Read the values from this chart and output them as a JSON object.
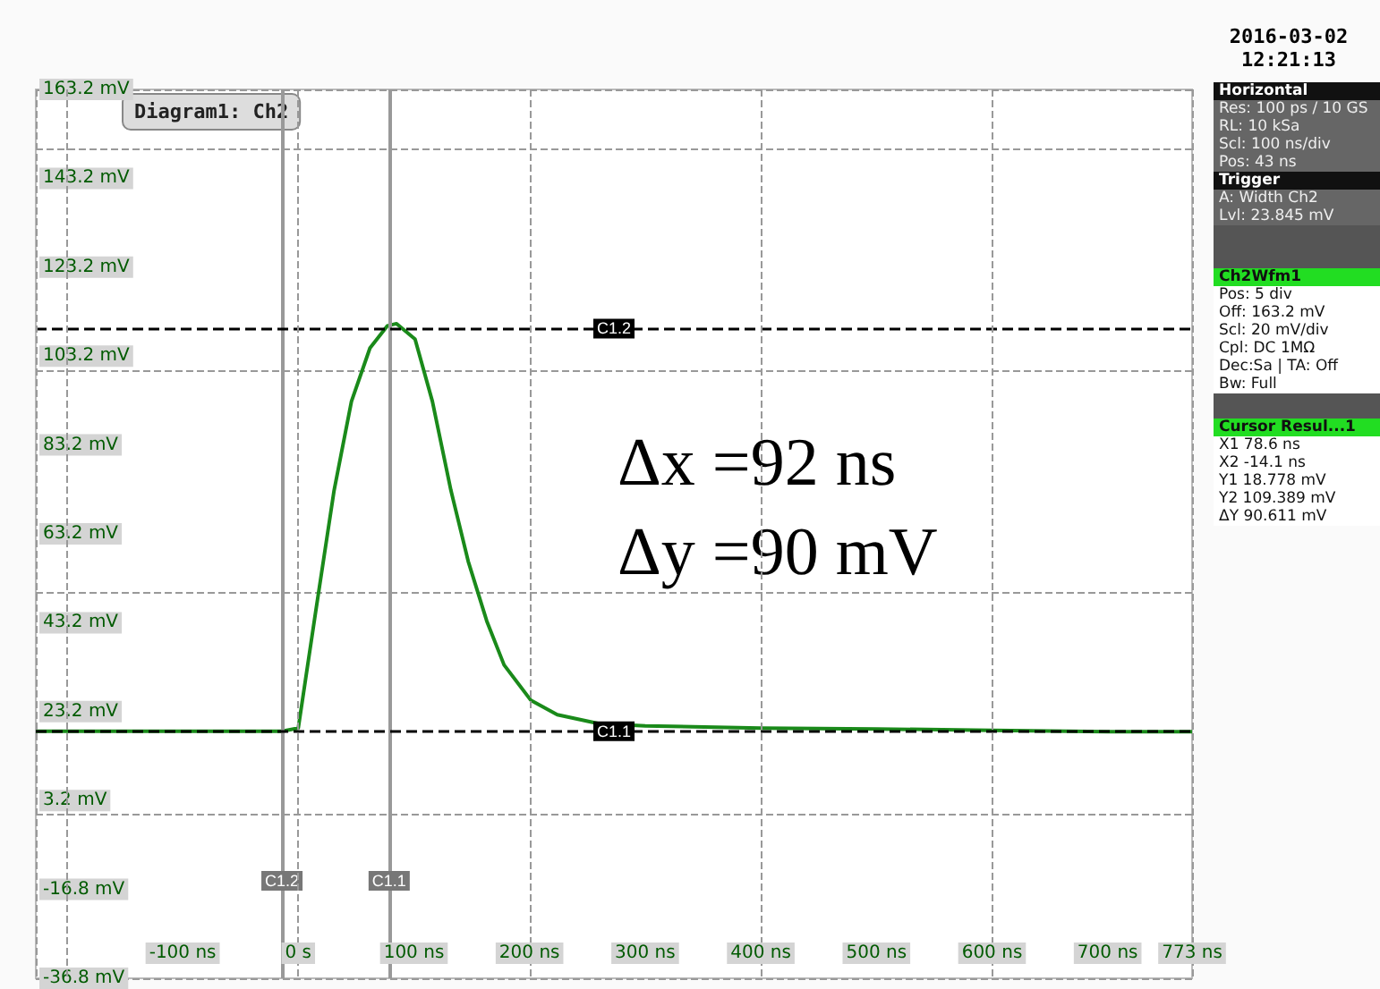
{
  "chart_data": {
    "type": "line",
    "marker": "none",
    "line_style": "solid",
    "grid": true,
    "x": [
      -227,
      -150,
      -50,
      -14,
      0,
      15,
      31,
      46,
      62,
      77,
      85,
      101,
      116,
      132,
      147,
      163,
      178,
      201,
      224,
      260,
      300,
      400,
      500,
      600,
      700,
      773
    ],
    "series": [
      {
        "color": "#1a8a1a",
        "values": [
          18.8,
          18.8,
          18.8,
          18.8,
          19.5,
          45.6,
          73,
          93,
          105,
          110,
          110.5,
          107,
          93,
          73,
          57,
          43.6,
          33.7,
          25.8,
          22.5,
          20.5,
          20,
          19.5,
          19.3,
          19,
          18.7,
          18.7
        ]
      }
    ],
    "xlim": [
      -227,
      773
    ],
    "xticks": [
      {
        "value": -200,
        "label": null
      },
      {
        "value": -100,
        "label": "-100 ns"
      },
      {
        "value": 0,
        "label": "0 s"
      },
      {
        "value": 100,
        "label": "100 ns"
      },
      {
        "value": 200,
        "label": "200 ns"
      },
      {
        "value": 300,
        "label": "300 ns"
      },
      {
        "value": 400,
        "label": "400 ns"
      },
      {
        "value": 500,
        "label": "500 ns"
      },
      {
        "value": 600,
        "label": "600 ns"
      },
      {
        "value": 700,
        "label": "700 ns"
      },
      {
        "value": 773,
        "label": "773 ns"
      }
    ],
    "ylim": [
      -36.8,
      163.2
    ],
    "yticks": [
      {
        "value": 163.2,
        "label": "163.2 mV"
      },
      {
        "value": 143.2,
        "label": "143.2 mV"
      },
      {
        "value": 123.2,
        "label": "123.2 mV"
      },
      {
        "value": 103.2,
        "label": "103.2 mV"
      },
      {
        "value": 83.2,
        "label": "83.2 mV"
      },
      {
        "value": 63.2,
        "label": "63.2 mV"
      },
      {
        "value": 43.2,
        "label": "43.2 mV"
      },
      {
        "value": 23.2,
        "label": "23.2 mV"
      },
      {
        "value": 3.2,
        "label": "3.2 mV"
      },
      {
        "value": -16.8,
        "label": "-16.8 mV"
      },
      {
        "value": -36.8,
        "label": "-36.8 mV"
      }
    ],
    "ref_lines": [
      {
        "axis": "x",
        "value": -14.1,
        "label": "C1.2",
        "color": "#999999"
      },
      {
        "axis": "x",
        "value": 78.6,
        "label": "C1.1",
        "color": "#999999"
      },
      {
        "axis": "y",
        "value": 18.778,
        "label": "C1.1",
        "color": "#000000",
        "line_style": "dashed"
      },
      {
        "axis": "y",
        "value": 109.389,
        "label": "C1.2",
        "color": "#000000",
        "line_style": "dashed"
      }
    ],
    "annotations": [
      "Δx =92 ns",
      "Δy =90 mV",
      "Diagram1: Ch2",
      "2016-03-02\n12:21:13",
      "Horizontal",
      "Res: 100 ps / 10 GS",
      "RL: 10 kSa",
      "Scl: 100 ns/div",
      "Pos: 43 ns",
      "Trigger",
      "A: Width Ch2",
      "Lvl: 23.845 mV",
      "Ch2Wfm1",
      "Pos: 5 div",
      "Off: 163.2 mV",
      "Scl: 20 mV/div",
      "Cpl: DC 1MΩ",
      "Dec:Sa | TA: Off",
      "Bw: Full",
      "Cursor Resul...1",
      "X1 78.6 ns",
      "X2 -14.1 ns",
      "Y1 18.778 mV",
      "Y2 109.389 mV",
      "ΔY 90.611 mV"
    ]
  }
}
